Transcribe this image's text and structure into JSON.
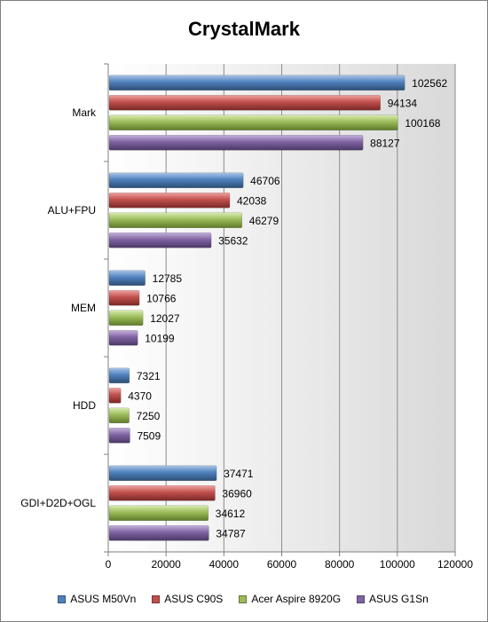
{
  "chart_data": {
    "type": "bar",
    "orientation": "horizontal",
    "title": "CrystalMark",
    "categories": [
      "Mark",
      "ALU+FPU",
      "MEM",
      "HDD",
      "GDI+D2D+OGL"
    ],
    "series": [
      {
        "name": "ASUS M50Vn",
        "color": "#4f81bd",
        "values": [
          102562,
          46706,
          12785,
          7321,
          37471
        ]
      },
      {
        "name": "ASUS C90S",
        "color": "#c0504d",
        "values": [
          94134,
          42038,
          10766,
          4370,
          36960
        ]
      },
      {
        "name": "Acer Aspire 8920G",
        "color": "#9bbb59",
        "values": [
          100168,
          46279,
          12027,
          7250,
          34612
        ]
      },
      {
        "name": "ASUS G1Sn",
        "color": "#8064a2",
        "values": [
          88127,
          35632,
          10199,
          7509,
          34787
        ]
      }
    ],
    "xlim": [
      0,
      120000
    ],
    "xticks": [
      0,
      20000,
      40000,
      60000,
      80000,
      100000,
      120000
    ],
    "grid": true,
    "legend_position": "bottom"
  }
}
